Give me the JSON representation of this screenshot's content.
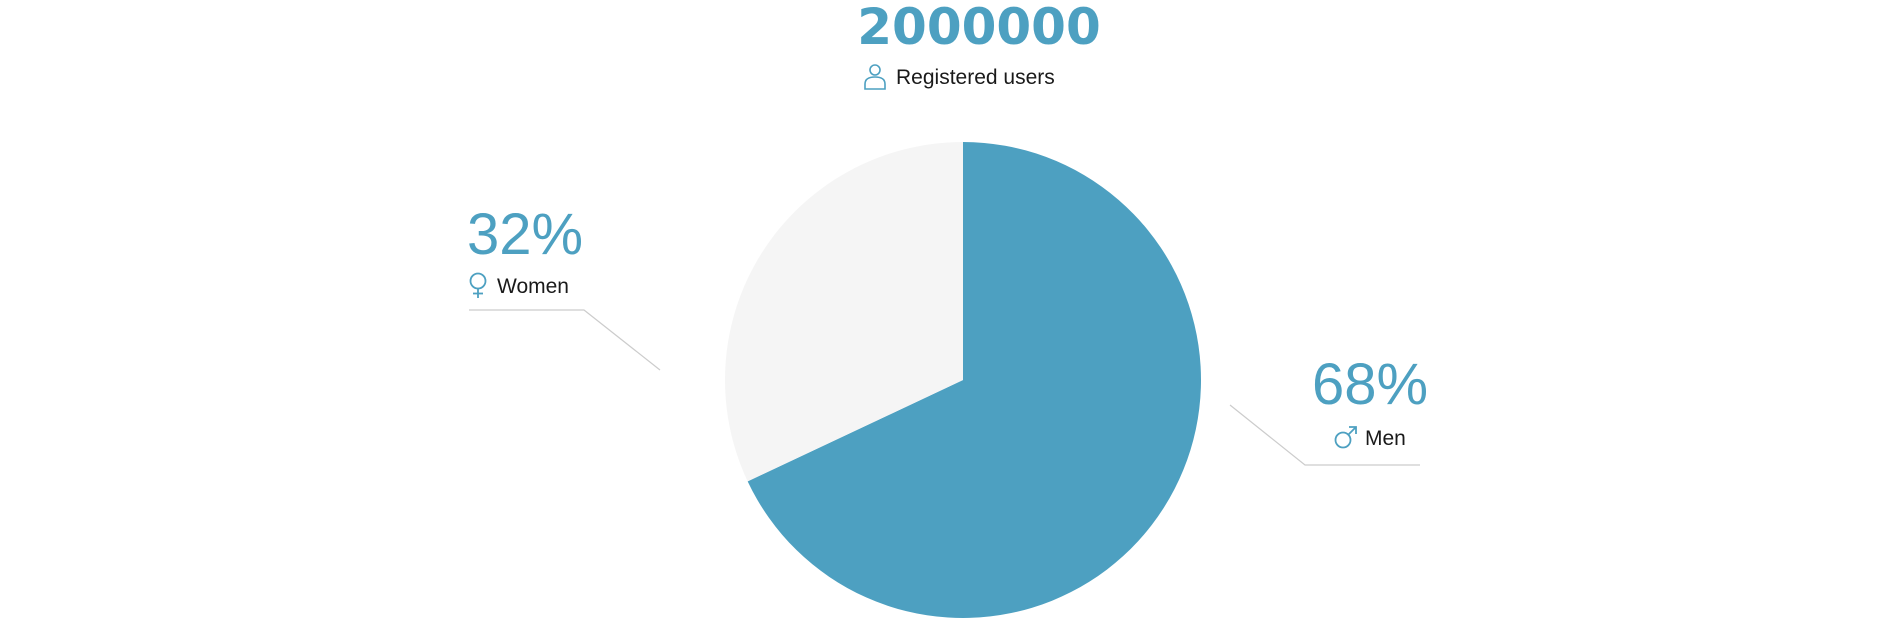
{
  "header": {
    "total": "2000000",
    "caption": "Registered users",
    "icon": "user-icon"
  },
  "colors": {
    "accent": "#4da0c1",
    "muted": "#f5f5f5",
    "leader": "#cccccc",
    "text": "#1a1a1a"
  },
  "chart_data": {
    "type": "pie",
    "categories": [
      "Men",
      "Women"
    ],
    "values": [
      68,
      32
    ],
    "colors": [
      "#4da0c1",
      "#f5f5f5"
    ],
    "labels": [
      {
        "category": "Men",
        "percent_text": "68%",
        "icon": "male-icon"
      },
      {
        "category": "Women",
        "percent_text": "32%",
        "icon": "female-icon"
      }
    ]
  }
}
